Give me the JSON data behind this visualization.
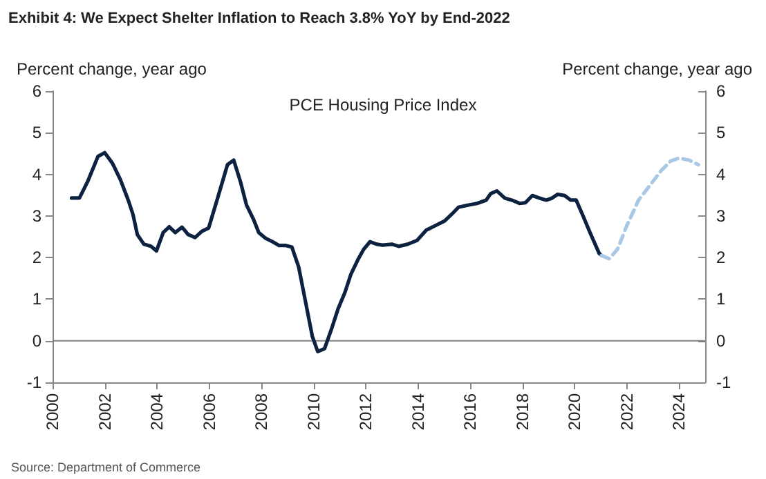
{
  "chart_data": {
    "type": "line",
    "title": "Exhibit 4: We Expect Shelter Inflation to Reach 3.8% YoY by End-2022",
    "subtitle": "PCE Housing Price Index",
    "ylabel": "Percent change, year ago",
    "y2label": "Percent change, year ago",
    "annotations": [
      "Source: Department of Commerce"
    ],
    "series": [
      {
        "color": "#0d2240",
        "line_style": "solid",
        "x": [
          2000.73,
          2001.03,
          2001.34,
          2001.74,
          2002.0,
          2002.3,
          2002.6,
          2002.9,
          2003.08,
          2003.25,
          2003.5,
          2003.77,
          2003.98,
          2004.24,
          2004.47,
          2004.7,
          2004.96,
          2005.2,
          2005.46,
          2005.72,
          2005.98,
          2006.3,
          2006.56,
          2006.7,
          2006.94,
          2007.2,
          2007.43,
          2007.69,
          2007.9,
          2008.17,
          2008.43,
          2008.68,
          2008.94,
          2009.17,
          2009.43,
          2009.69,
          2009.95,
          2010.16,
          2010.42,
          2010.68,
          2010.94,
          2011.2,
          2011.43,
          2011.69,
          2011.91,
          2012.16,
          2012.42,
          2012.64,
          2013.0,
          2013.26,
          2013.6,
          2013.96,
          2014.32,
          2014.67,
          2015.02,
          2015.29,
          2015.55,
          2015.91,
          2016.26,
          2016.61,
          2016.79,
          2017.02,
          2017.32,
          2017.59,
          2017.9,
          2018.12,
          2018.38,
          2018.65,
          2018.91,
          2019.14,
          2019.35,
          2019.62,
          2019.85,
          2020.06,
          2020.33,
          2020.59,
          2020.94,
          2021.03
        ],
        "values": [
          3.43,
          3.43,
          3.82,
          4.43,
          4.52,
          4.26,
          3.87,
          3.38,
          3.04,
          2.55,
          2.32,
          2.27,
          2.16,
          2.6,
          2.74,
          2.6,
          2.73,
          2.55,
          2.48,
          2.63,
          2.71,
          3.38,
          3.93,
          4.23,
          4.34,
          3.82,
          3.26,
          2.93,
          2.6,
          2.46,
          2.38,
          2.29,
          2.29,
          2.25,
          1.77,
          0.94,
          0.11,
          -0.26,
          -0.19,
          0.27,
          0.77,
          1.16,
          1.6,
          1.94,
          2.19,
          2.38,
          2.32,
          2.3,
          2.32,
          2.27,
          2.32,
          2.41,
          2.66,
          2.77,
          2.88,
          3.04,
          3.21,
          3.26,
          3.3,
          3.38,
          3.54,
          3.6,
          3.43,
          3.38,
          3.3,
          3.32,
          3.49,
          3.43,
          3.38,
          3.43,
          3.52,
          3.49,
          3.38,
          3.38,
          2.99,
          2.6,
          2.1,
          2.05
        ]
      },
      {
        "color": "#a9c8e6",
        "line_style": "dashed",
        "x": [
          2021.03,
          2021.33,
          2021.65,
          2022.0,
          2022.45,
          2022.89,
          2023.33,
          2023.68,
          2024.0,
          2024.39,
          2024.74
        ],
        "values": [
          2.05,
          1.97,
          2.21,
          2.77,
          3.38,
          3.74,
          4.1,
          4.32,
          4.39,
          4.34,
          4.23
        ]
      }
    ],
    "xlim": [
      2000,
      2025
    ],
    "xticks": [
      2000,
      2002,
      2004,
      2006,
      2008,
      2010,
      2012,
      2014,
      2016,
      2018,
      2020,
      2022,
      2024
    ],
    "ylim": [
      -1,
      6
    ],
    "yticks": [
      -1,
      0,
      1,
      2,
      3,
      4,
      5,
      6
    ],
    "y2lim": [
      -1,
      6
    ],
    "y2ticks": [
      -1,
      0,
      1,
      2,
      3,
      4,
      5,
      6
    ],
    "ref_lines": [
      {
        "axis": "y",
        "value": 0,
        "color": "#808080"
      }
    ],
    "grid": false,
    "marker": "none"
  }
}
